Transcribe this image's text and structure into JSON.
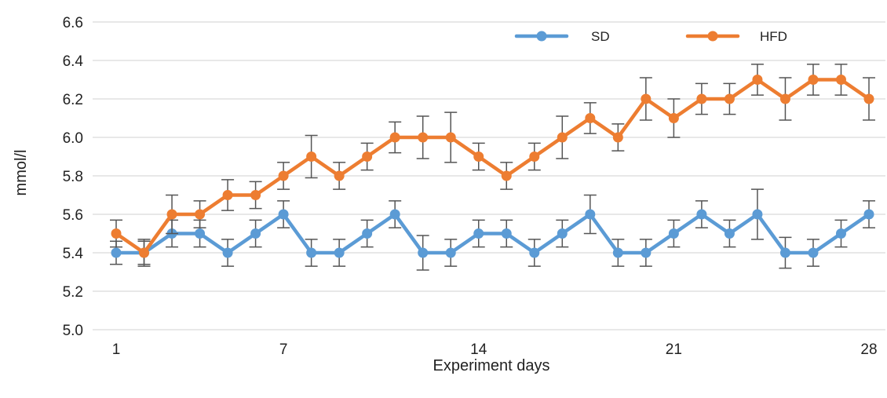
{
  "chart_data": {
    "type": "line",
    "title": "",
    "xlabel": "Experiment days",
    "ylabel": "mmol/l",
    "x": [
      1,
      2,
      3,
      4,
      5,
      6,
      7,
      8,
      9,
      10,
      11,
      12,
      13,
      14,
      15,
      16,
      17,
      18,
      19,
      20,
      21,
      22,
      23,
      24,
      25,
      26,
      27,
      28
    ],
    "xlim": [
      1,
      28
    ],
    "xticks": [
      1,
      7,
      14,
      21,
      28
    ],
    "ylim": [
      5.0,
      6.6
    ],
    "yticks": [
      "5.0",
      "5.2",
      "5.4",
      "5.6",
      "5.8",
      "6.0",
      "6.2",
      "6.4",
      "6.6"
    ],
    "grid": true,
    "legend_position": "top-right",
    "series": [
      {
        "name": "SD",
        "color": "#5b9bd5",
        "values": [
          5.4,
          5.4,
          5.5,
          5.5,
          5.4,
          5.5,
          5.6,
          5.4,
          5.4,
          5.5,
          5.6,
          5.4,
          5.4,
          5.5,
          5.5,
          5.4,
          5.5,
          5.6,
          5.4,
          5.4,
          5.5,
          5.6,
          5.5,
          5.6,
          5.4,
          5.4,
          5.5,
          5.6
        ],
        "error": [
          0.06,
          0.06,
          0.07,
          0.07,
          0.07,
          0.07,
          0.07,
          0.07,
          0.07,
          0.07,
          0.07,
          0.09,
          0.07,
          0.07,
          0.07,
          0.07,
          0.07,
          0.1,
          0.07,
          0.07,
          0.07,
          0.07,
          0.07,
          0.13,
          0.08,
          0.07,
          0.07,
          0.07
        ]
      },
      {
        "name": "HFD",
        "color": "#ed7d31",
        "values": [
          5.5,
          5.4,
          5.6,
          5.6,
          5.7,
          5.7,
          5.8,
          5.9,
          5.8,
          5.9,
          6.0,
          6.0,
          6.0,
          5.9,
          5.8,
          5.9,
          6.0,
          6.1,
          6.0,
          6.2,
          6.1,
          6.2,
          6.2,
          6.3,
          6.2,
          6.3,
          6.3,
          6.2
        ],
        "error": [
          0.07,
          0.07,
          0.1,
          0.07,
          0.08,
          0.07,
          0.07,
          0.11,
          0.07,
          0.07,
          0.08,
          0.11,
          0.13,
          0.07,
          0.07,
          0.07,
          0.11,
          0.08,
          0.07,
          0.11,
          0.1,
          0.08,
          0.08,
          0.08,
          0.11,
          0.08,
          0.08,
          0.11
        ]
      }
    ]
  }
}
